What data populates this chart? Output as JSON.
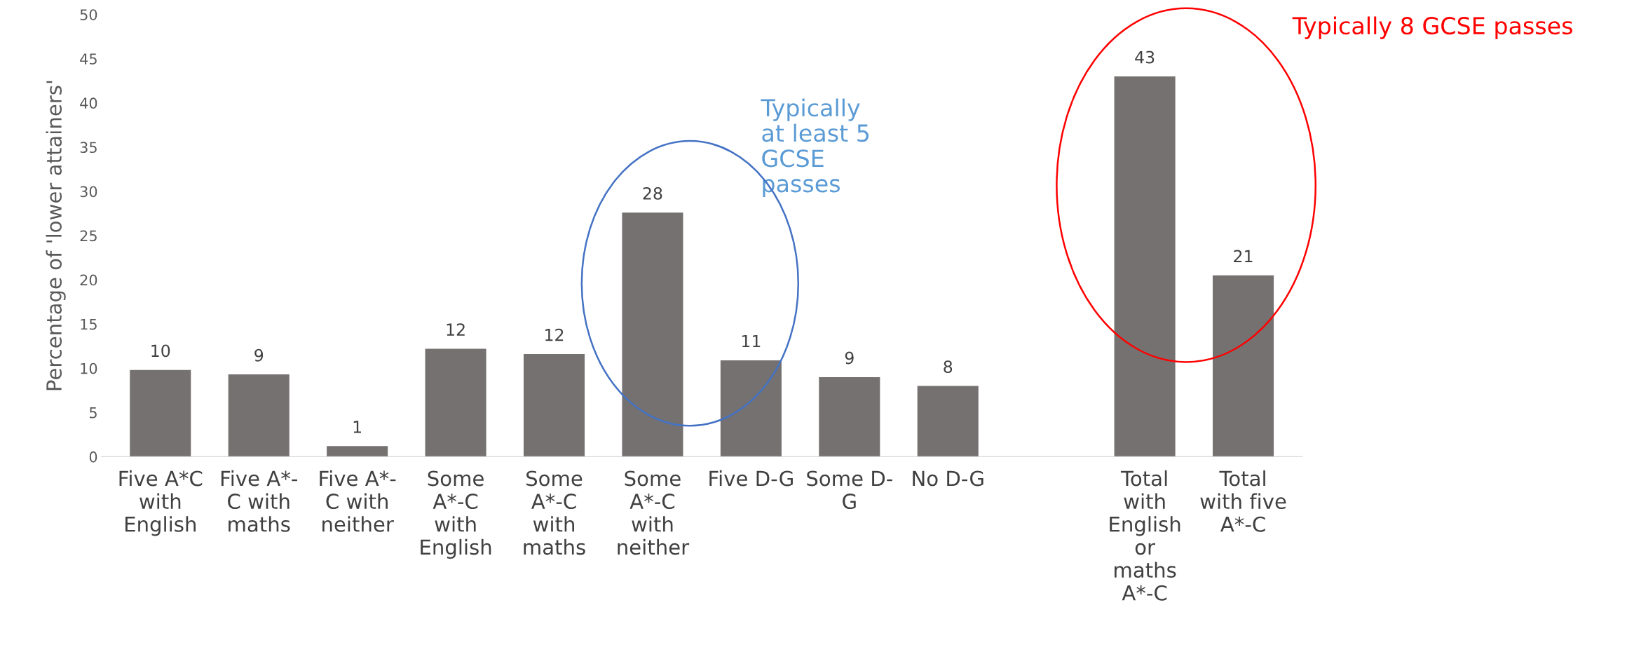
{
  "chart_data": {
    "type": "bar",
    "ylabel": "Percentage of 'lower attainers'",
    "categories": [
      "Five A*C\nwith\nEnglish",
      "Five A*-\nC with\nmaths",
      "Five A*-\nC with\nneither",
      "Some\nA*-C\nwith\nEnglish",
      "Some\nA*-C\nwith\nmaths",
      "Some\nA*-C\nwith\nneither",
      "Five D-G",
      "Some D-\nG",
      "No D-G",
      null,
      "Total\nwith\nEnglish\nor\nmaths\nA*-C",
      "Total\nwith five\nA*-C"
    ],
    "values": [
      9.8,
      9.3,
      1.2,
      12.2,
      11.6,
      27.6,
      10.9,
      9.0,
      8.0,
      null,
      43.0,
      20.5
    ],
    "value_labels": [
      "10",
      "9",
      "1",
      "12",
      "12",
      "28",
      "11",
      "9",
      "8",
      null,
      "43",
      "21"
    ],
    "color": "#757170",
    "ylim": [
      0,
      50
    ],
    "yticks": [
      0,
      5,
      10,
      15,
      20,
      25,
      30,
      35,
      40,
      45,
      50
    ],
    "grid": false,
    "legend": false,
    "annotations": [
      "Typically\nat least 5\nGCSE\npasses",
      "Typically 8 GCSE passes"
    ]
  }
}
